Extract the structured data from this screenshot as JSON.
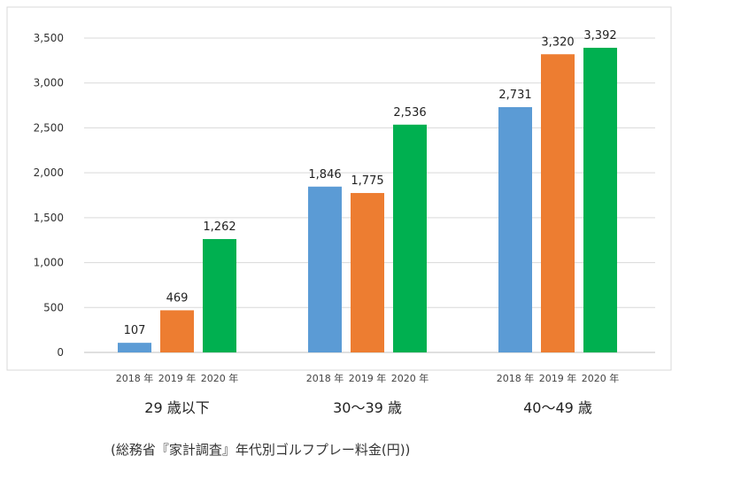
{
  "chart_data": {
    "type": "bar",
    "ylim": [
      0,
      3500
    ],
    "yticks": [
      0,
      500,
      1000,
      1500,
      2000,
      2500,
      3000,
      3500
    ],
    "ytick_labels": [
      "0",
      "500",
      "1,000",
      "1,500",
      "2,000",
      "2,500",
      "3,000",
      "3,500"
    ],
    "grid": true,
    "legend": "none",
    "groups": [
      {
        "label": "29 歳以下",
        "bars": [
          {
            "year": "2018 年",
            "value": 107,
            "value_label": "107"
          },
          {
            "year": "2019 年",
            "value": 469,
            "value_label": "469"
          },
          {
            "year": "2020 年",
            "value": 1262,
            "value_label": "1,262"
          }
        ]
      },
      {
        "label": "30〜39 歳",
        "bars": [
          {
            "year": "2018 年",
            "value": 1846,
            "value_label": "1,846"
          },
          {
            "year": "2019 年",
            "value": 1775,
            "value_label": "1,775"
          },
          {
            "year": "2020 年",
            "value": 2536,
            "value_label": "2,536"
          }
        ]
      },
      {
        "label": "40〜49 歳",
        "bars": [
          {
            "year": "2018 年",
            "value": 2731,
            "value_label": "2,731"
          },
          {
            "year": "2019 年",
            "value": 3320,
            "value_label": "3,320"
          },
          {
            "year": "2020 年",
            "value": 3392,
            "value_label": "3,392"
          }
        ]
      }
    ],
    "colors": [
      "#5b9bd5",
      "#ed7d31",
      "#00b050"
    ],
    "source_note": "(総務省『家計調査』年代別ゴルフプレー料金(円))"
  }
}
